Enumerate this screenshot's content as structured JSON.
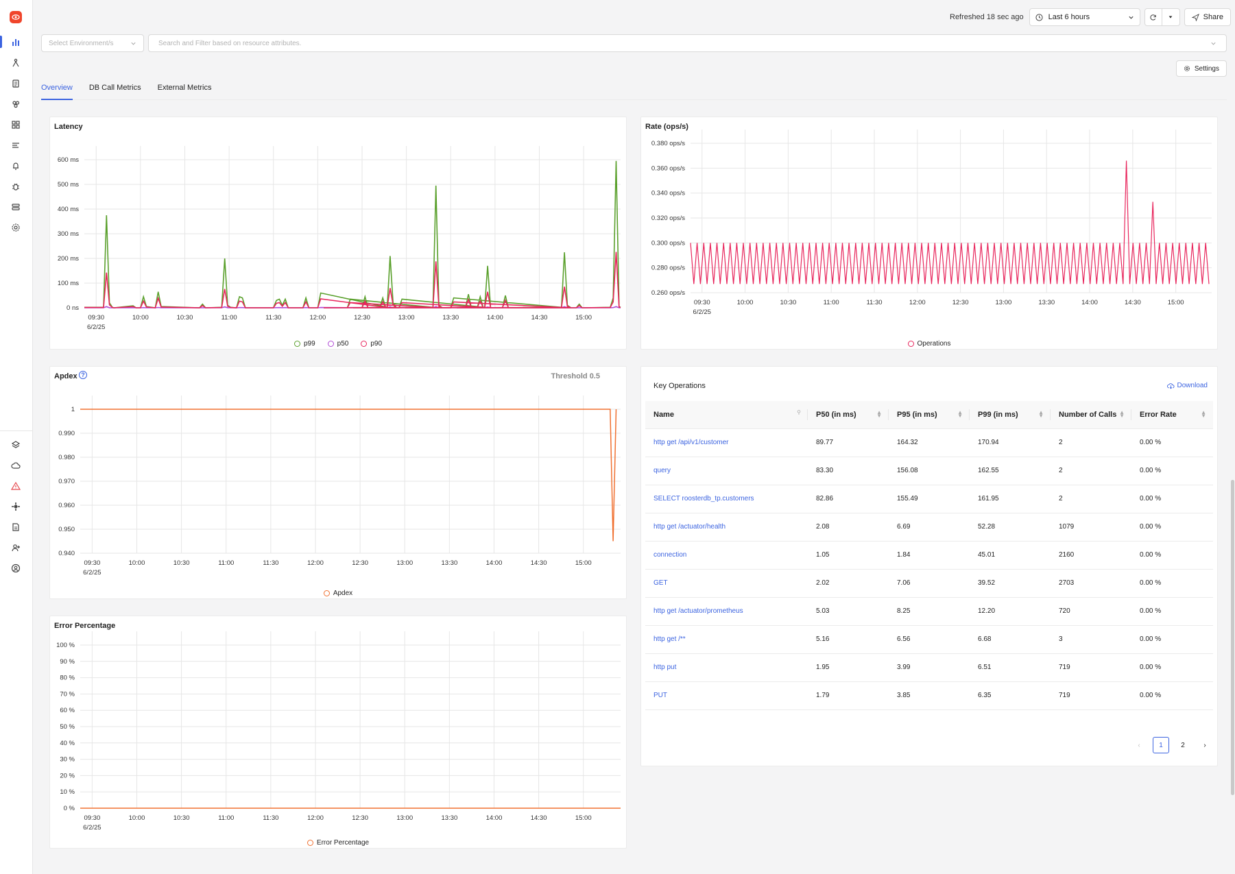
{
  "sidebar": {
    "logo": "eye-logo",
    "top_items": [
      "services-icon",
      "traces-icon",
      "logs-icon",
      "dashboards-icon",
      "alerts-icon",
      "explorer-icon",
      "alerts-bell-icon",
      "exceptions-icon",
      "pipelines-icon",
      "settings-icon"
    ],
    "bottom_items": [
      "layers-icon",
      "cloud-icon",
      "warning-icon",
      "integrations-icon",
      "docs-icon",
      "invite-user-icon",
      "account-icon"
    ]
  },
  "topbar": {
    "refreshed": "Refreshed 18 sec ago",
    "time_range": "Last 6 hours",
    "share": "Share"
  },
  "filters": {
    "environment_placeholder": "Select Environment/s",
    "search_placeholder": "Search and Filter based on resource attributes."
  },
  "settings_label": "Settings",
  "tabs": [
    {
      "label": "Overview",
      "active": true
    },
    {
      "label": "DB Call Metrics",
      "active": false
    },
    {
      "label": "External Metrics",
      "active": false
    }
  ],
  "colors": {
    "accent": "#3b63e0",
    "p99": "#5aa02c",
    "p50": "#b24bd6",
    "p90": "#e8245b",
    "operations": "#e8245b",
    "apdex": "#f07030"
  },
  "x_ticks": [
    "09:30",
    "10:00",
    "10:30",
    "11:00",
    "11:30",
    "12:00",
    "12:30",
    "13:00",
    "13:30",
    "14:00",
    "14:30",
    "15:00"
  ],
  "x_date": "6/2/25",
  "latency": {
    "title": "Latency",
    "y_ticks": [
      "600 ms",
      "500 ms",
      "400 ms",
      "300 ms",
      "200 ms",
      "100 ms",
      "0 ns"
    ],
    "legend": [
      "p99",
      "p50",
      "p90"
    ]
  },
  "rate": {
    "title": "Rate (ops/s)",
    "y_ticks": [
      "0.380 ops/s",
      "0.360 ops/s",
      "0.340 ops/s",
      "0.320 ops/s",
      "0.300 ops/s",
      "0.280 ops/s",
      "0.260 ops/s"
    ],
    "legend": [
      "Operations"
    ]
  },
  "apdex": {
    "title": "Apdex",
    "threshold": "Threshold 0.5",
    "y_ticks": [
      "1",
      "0.990",
      "0.980",
      "0.970",
      "0.960",
      "0.950",
      "0.940"
    ],
    "legend": [
      "Apdex"
    ]
  },
  "error_pct": {
    "title": "Error Percentage",
    "y_ticks": [
      "100 %",
      "90 %",
      "80 %",
      "70 %",
      "60 %",
      "50 %",
      "40 %",
      "30 %",
      "20 %",
      "10 %",
      "0 %"
    ],
    "legend": [
      "Error Percentage"
    ]
  },
  "key_operations": {
    "title": "Key Operations",
    "download": "Download",
    "columns": [
      "Name",
      "P50 (in ms)",
      "P95 (in ms)",
      "P99 (in ms)",
      "Number of Calls",
      "Error Rate"
    ],
    "rows": [
      [
        "http get /api/v1/customer",
        "89.77",
        "164.32",
        "170.94",
        "2",
        "0.00 %"
      ],
      [
        "query",
        "83.30",
        "156.08",
        "162.55",
        "2",
        "0.00 %"
      ],
      [
        "SELECT roosterdb_tp.customers",
        "82.86",
        "155.49",
        "161.95",
        "2",
        "0.00 %"
      ],
      [
        "http get /actuator/health",
        "2.08",
        "6.69",
        "52.28",
        "1079",
        "0.00 %"
      ],
      [
        "connection",
        "1.05",
        "1.84",
        "45.01",
        "2160",
        "0.00 %"
      ],
      [
        "GET",
        "2.02",
        "7.06",
        "39.52",
        "2703",
        "0.00 %"
      ],
      [
        "http get /actuator/prometheus",
        "5.03",
        "8.25",
        "12.20",
        "720",
        "0.00 %"
      ],
      [
        "http get /**",
        "5.16",
        "6.56",
        "6.68",
        "3",
        "0.00 %"
      ],
      [
        "http put",
        "1.95",
        "3.99",
        "6.51",
        "719",
        "0.00 %"
      ],
      [
        "PUT",
        "1.79",
        "3.85",
        "6.35",
        "719",
        "0.00 %"
      ]
    ],
    "pages": [
      "1",
      "2"
    ],
    "current_page": 1
  },
  "chart_data": [
    {
      "type": "line",
      "title": "Latency",
      "x_unit": "time (6/2/25)",
      "ylim": [
        0,
        650
      ],
      "y_unit": "ms",
      "series": [
        {
          "name": "p99",
          "points": [
            [
              9.3,
              0
            ],
            [
              9.4,
              375
            ],
            [
              9.45,
              5
            ],
            [
              10.0,
              50
            ],
            [
              10.1,
              65
            ],
            [
              10.55,
              200
            ],
            [
              11.3,
              35
            ],
            [
              12.0,
              60
            ],
            [
              12.35,
              210
            ],
            [
              13.08,
              495
            ],
            [
              13.55,
              170
            ],
            [
              14.45,
              225
            ],
            [
              15.22,
              595
            ],
            [
              15.25,
              0
            ]
          ]
        },
        {
          "name": "p50",
          "points": [
            [
              9.3,
              0
            ],
            [
              9.4,
              5
            ],
            [
              10.55,
              2
            ],
            [
              13.08,
              4
            ],
            [
              15.22,
              3
            ],
            [
              15.25,
              0
            ]
          ]
        },
        {
          "name": "p90",
          "points": [
            [
              9.3,
              0
            ],
            [
              9.4,
              120
            ],
            [
              9.45,
              3
            ],
            [
              10.55,
              60
            ],
            [
              12.35,
              105
            ],
            [
              13.08,
              250
            ],
            [
              14.45,
              70
            ],
            [
              15.22,
              185
            ],
            [
              15.25,
              0
            ]
          ]
        }
      ]
    },
    {
      "type": "line",
      "title": "Rate (ops/s)",
      "ylim": [
        0.255,
        0.385
      ],
      "series": [
        {
          "name": "Operations",
          "baseline_low": 0.267,
          "baseline_high": 0.3,
          "spikes": [
            [
              13.85,
              0.366
            ],
            [
              14.45,
              0.333
            ]
          ]
        }
      ]
    },
    {
      "type": "line",
      "title": "Apdex",
      "ylim": [
        0.937,
        1.002
      ],
      "series": [
        {
          "name": "Apdex",
          "points": [
            [
              9.3,
              1
            ],
            [
              15.18,
              1
            ],
            [
              15.2,
              0.945
            ],
            [
              15.22,
              1
            ]
          ]
        }
      ]
    },
    {
      "type": "line",
      "title": "Error Percentage",
      "ylim": [
        0,
        100
      ],
      "series": [
        {
          "name": "Error Percentage",
          "points": [
            [
              9.3,
              0
            ],
            [
              15.25,
              0
            ]
          ]
        }
      ]
    }
  ]
}
